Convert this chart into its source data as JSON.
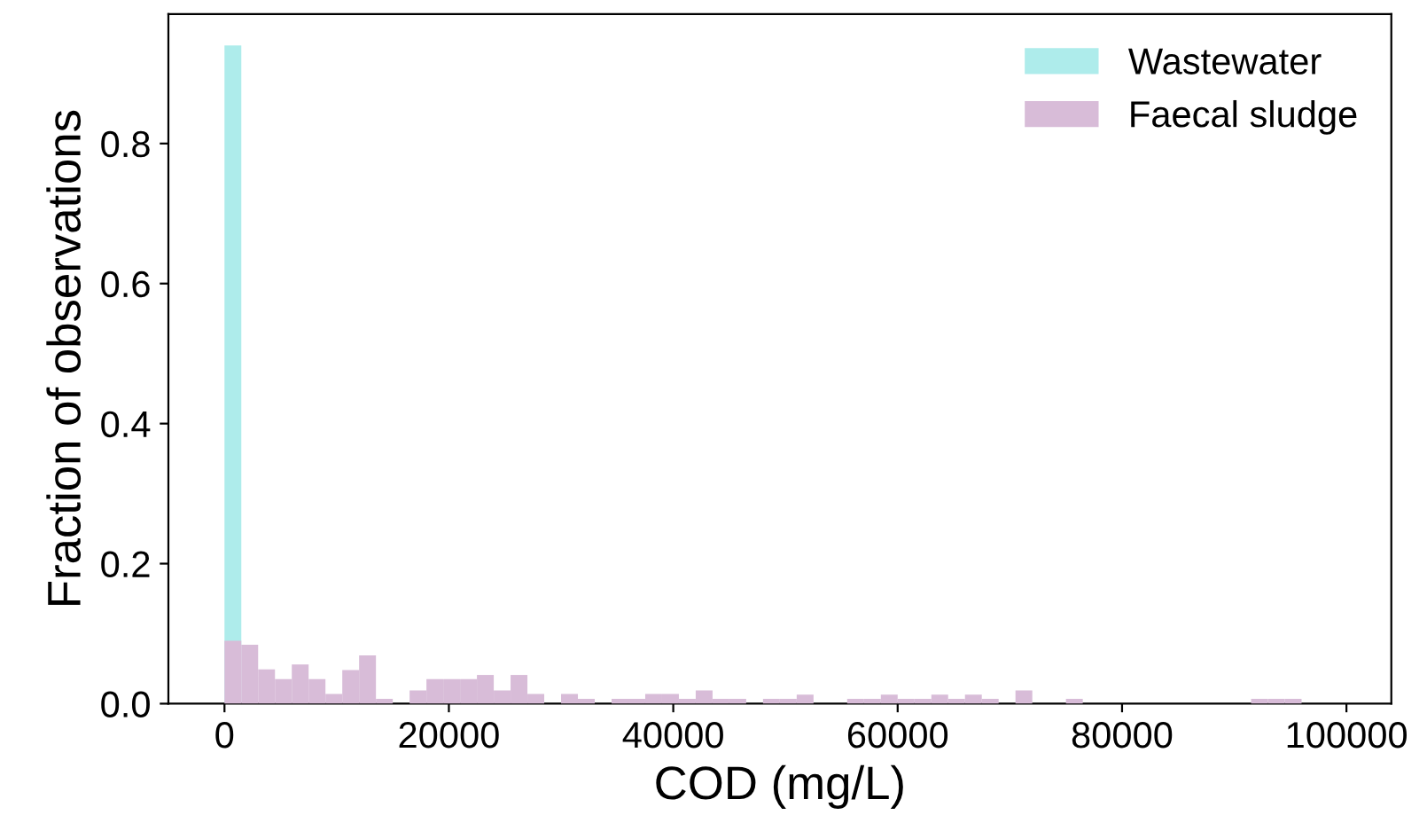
{
  "chart_data": {
    "type": "histogram",
    "xlabel": "COD (mg/L)",
    "ylabel": "Fraction of observations",
    "bins": [
      0,
      1500,
      3000,
      4500,
      6000,
      7500,
      9000,
      10500,
      12000,
      13500,
      15000,
      16500,
      18000,
      19500,
      21000,
      22500,
      24000,
      25500,
      27000,
      28500,
      30000,
      31500,
      33000,
      34500,
      36000,
      37500,
      39000,
      40500,
      42000,
      43500,
      45000,
      46500,
      48000,
      49500,
      51000,
      52500,
      54000,
      55500,
      57000,
      58500,
      60000,
      61500,
      63000,
      64500,
      66000,
      67500,
      69000,
      70500,
      72000,
      73500,
      75000,
      76500,
      78000,
      79500,
      81000,
      82500,
      84000,
      85500,
      87000,
      88500,
      90000,
      91500,
      93000,
      94500,
      96000
    ],
    "series": [
      {
        "name": "Wastewater",
        "color": "#aeeceb",
        "values": [
          0.94,
          0,
          0,
          0,
          0,
          0,
          0,
          0,
          0,
          0,
          0,
          0,
          0,
          0,
          0,
          0,
          0,
          0,
          0,
          0,
          0,
          0,
          0,
          0,
          0,
          0,
          0,
          0,
          0,
          0,
          0,
          0,
          0,
          0,
          0,
          0,
          0,
          0,
          0,
          0,
          0,
          0,
          0,
          0,
          0,
          0,
          0,
          0,
          0,
          0,
          0,
          0,
          0,
          0,
          0,
          0,
          0,
          0,
          0,
          0,
          0,
          0,
          0,
          0
        ]
      },
      {
        "name": "Faecal sludge",
        "color": "#d8bcd8",
        "values": [
          0.09,
          0.084,
          0.049,
          0.035,
          0.056,
          0.035,
          0.014,
          0.048,
          0.069,
          0.007,
          0,
          0.019,
          0.035,
          0.035,
          0.035,
          0.041,
          0.019,
          0.041,
          0.014,
          0,
          0.014,
          0.007,
          0,
          0.007,
          0.007,
          0.014,
          0.014,
          0.007,
          0.019,
          0.007,
          0.007,
          0,
          0.007,
          0.007,
          0.013,
          0,
          0,
          0.007,
          0.007,
          0.013,
          0.007,
          0.007,
          0.013,
          0.007,
          0.013,
          0.007,
          0,
          0.019,
          0,
          0,
          0.007,
          0,
          0,
          0,
          0,
          0,
          0,
          0,
          0,
          0,
          0,
          0.007,
          0.007,
          0.007
        ]
      }
    ],
    "xlim": [
      -5000,
      104000
    ],
    "ylim": [
      0,
      0.985
    ],
    "xticks": [
      0,
      20000,
      40000,
      60000,
      80000,
      100000
    ],
    "yticks": [
      {
        "value": 0,
        "label": "0.0"
      },
      0.2,
      0.4,
      0.6,
      0.8
    ],
    "legend": "top right",
    "grid": false
  }
}
